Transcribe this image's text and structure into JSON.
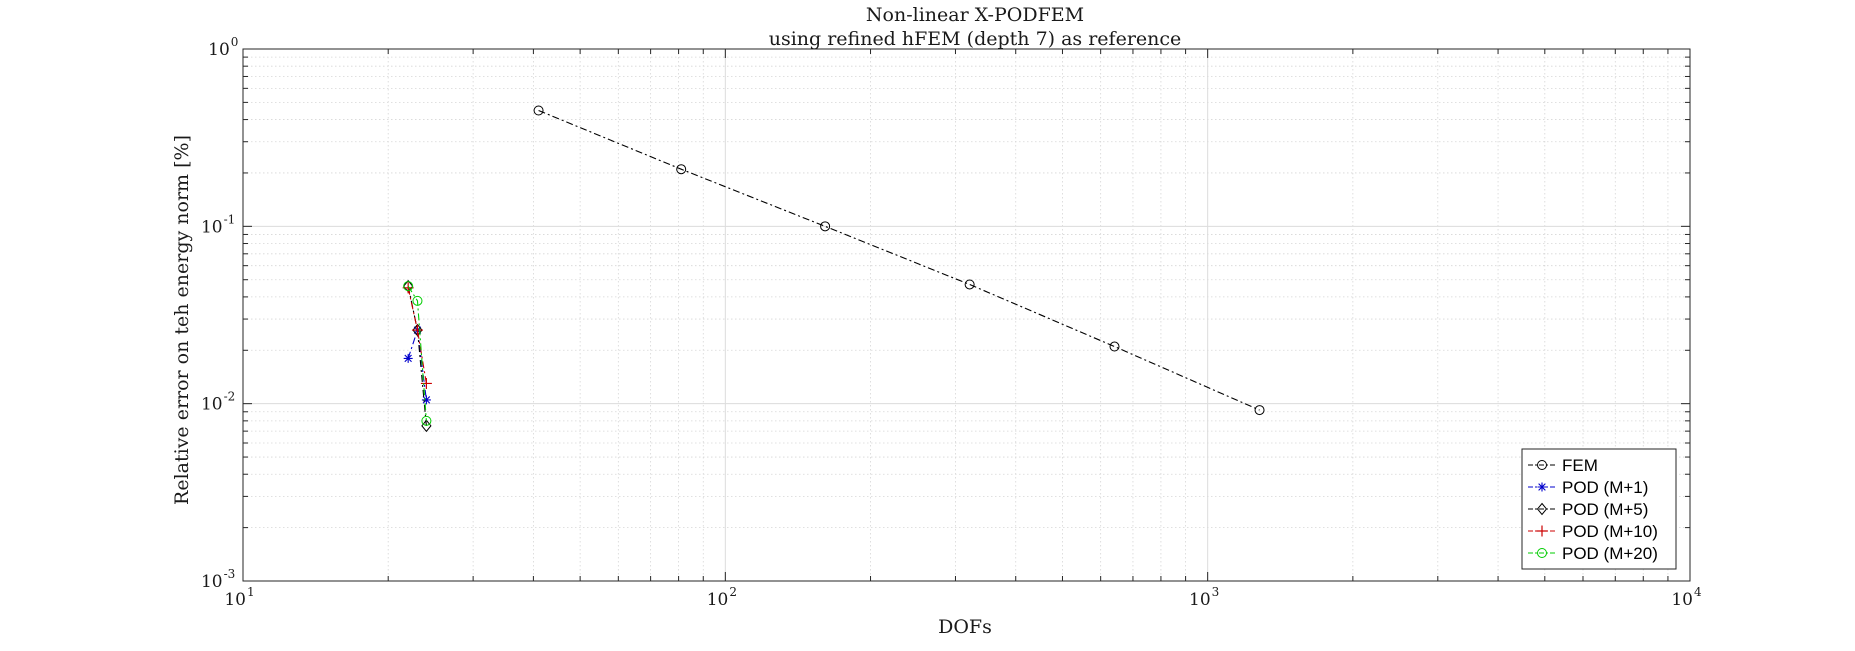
{
  "chart_data": {
    "type": "line",
    "title": "Non-linear X-PODFEM",
    "subtitle": "using refined hFEM (depth 7) as reference",
    "xlabel": "DOFs",
    "ylabel": "Relative error on teh energy norm [%]",
    "xscale": "log",
    "yscale": "log",
    "xlim": [
      10,
      10000
    ],
    "ylim": [
      0.001,
      1
    ],
    "grid": true,
    "minor_grid": true,
    "legend_position": "bottom-right",
    "x_ticks": [
      {
        "base": "10",
        "exp": "1",
        "value": 10
      },
      {
        "base": "10",
        "exp": "2",
        "value": 100
      },
      {
        "base": "10",
        "exp": "3",
        "value": 1000
      },
      {
        "base": "10",
        "exp": "4",
        "value": 10000
      }
    ],
    "y_ticks": [
      {
        "base": "10",
        "exp": "0",
        "value": 1
      },
      {
        "base": "10",
        "exp": "-1",
        "value": 0.1
      },
      {
        "base": "10",
        "exp": "-2",
        "value": 0.01
      },
      {
        "base": "10",
        "exp": "-3",
        "value": 0.001
      }
    ],
    "series": [
      {
        "name": "FEM",
        "color": "#000000",
        "marker": "circle",
        "line_style": "dash-dot",
        "x": [
          41,
          81,
          161,
          321,
          641,
          1281
        ],
        "y": [
          0.45,
          0.21,
          0.1,
          0.047,
          0.021,
          0.0092
        ]
      },
      {
        "name": "POD (M+1)",
        "color": "#0000cc",
        "marker": "asterisk",
        "line_style": "dash-dot",
        "x": [
          22,
          23,
          24
        ],
        "y": [
          0.018,
          0.026,
          0.0105
        ]
      },
      {
        "name": "POD (M+5)",
        "color": "#000000",
        "marker": "diamond",
        "line_style": "dash-dot",
        "x": [
          22,
          23,
          24
        ],
        "y": [
          0.046,
          0.026,
          0.0075
        ]
      },
      {
        "name": "POD (M+10)",
        "color": "#cc0000",
        "marker": "plus",
        "line_style": "dash-dot",
        "x": [
          22,
          23,
          24
        ],
        "y": [
          0.045,
          0.026,
          0.013
        ]
      },
      {
        "name": "POD (M+20)",
        "color": "#00cc00",
        "marker": "circle",
        "line_style": "dash-dot",
        "x": [
          22,
          23,
          24
        ],
        "y": [
          0.046,
          0.038,
          0.008
        ]
      }
    ]
  }
}
